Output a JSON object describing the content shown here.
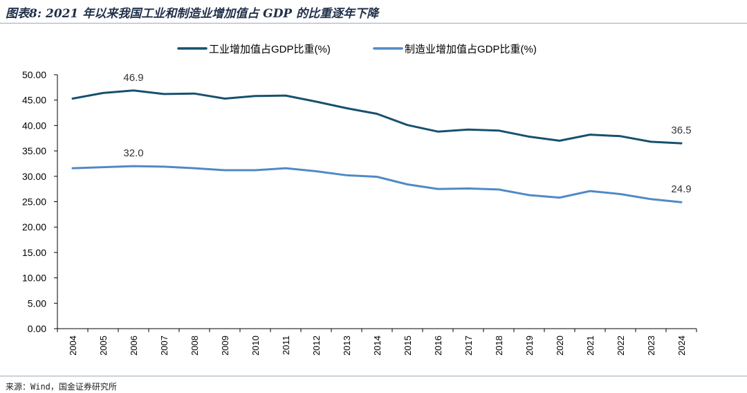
{
  "figure": {
    "title": "图表8: 2021 年以来我国工业和制造业增加值占 GDP 的比重逐年下降",
    "source": "来源：Wind，国金证券研究所"
  },
  "chart_data": {
    "type": "line",
    "title": "",
    "xlabel": "",
    "ylabel": "",
    "ylim": [
      0,
      50
    ],
    "yticks": [
      "0.00",
      "5.00",
      "10.00",
      "15.00",
      "20.00",
      "25.00",
      "30.00",
      "35.00",
      "40.00",
      "45.00",
      "50.00"
    ],
    "grid": false,
    "legend_position": "top-center",
    "categories": [
      "2004",
      "2005",
      "2006",
      "2007",
      "2008",
      "2009",
      "2010",
      "2011",
      "2012",
      "2013",
      "2014",
      "2015",
      "2016",
      "2017",
      "2018",
      "2019",
      "2020",
      "2021",
      "2022",
      "2023",
      "2024"
    ],
    "series": [
      {
        "name": "工业增加值占GDP比重(%)",
        "color": "#17506e",
        "values": [
          45.3,
          46.4,
          46.9,
          46.2,
          46.3,
          45.3,
          45.8,
          45.9,
          44.7,
          43.4,
          42.3,
          40.1,
          38.8,
          39.2,
          39.0,
          37.8,
          37.0,
          38.2,
          37.9,
          36.8,
          36.5
        ],
        "annotations": [
          {
            "index": 2,
            "label": "46.9"
          },
          {
            "index": 20,
            "label": "36.5"
          }
        ]
      },
      {
        "name": "制造业增加值占GDP比重(%)",
        "color": "#4e8ac6",
        "values": [
          31.6,
          31.8,
          32.0,
          31.9,
          31.6,
          31.2,
          31.2,
          31.6,
          31.0,
          30.2,
          29.9,
          28.4,
          27.5,
          27.6,
          27.4,
          26.3,
          25.8,
          27.1,
          26.5,
          25.5,
          24.9
        ],
        "annotations": [
          {
            "index": 2,
            "label": "32.0"
          },
          {
            "index": 20,
            "label": "24.9"
          }
        ]
      }
    ]
  }
}
